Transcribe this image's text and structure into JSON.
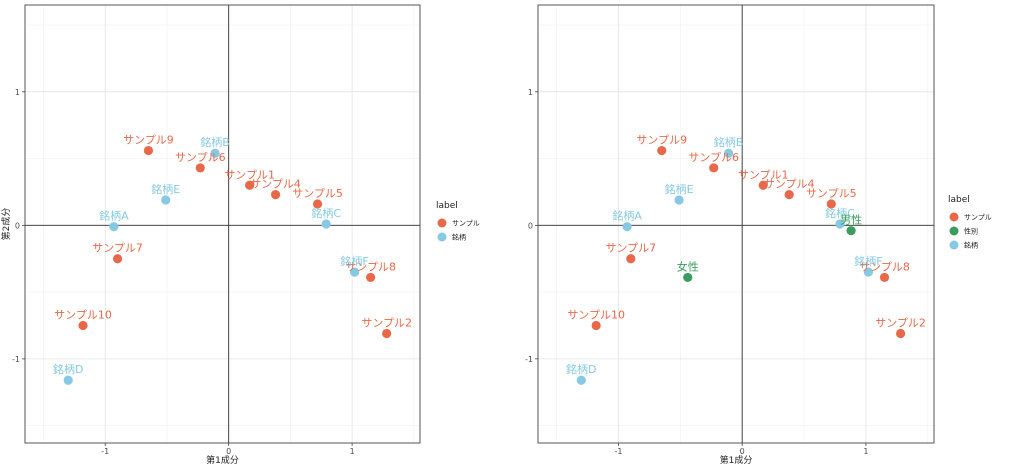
{
  "chart_data": [
    {
      "type": "scatter",
      "title": "",
      "xlabel": "第1成分",
      "ylabel": "第2成分",
      "xlim": [
        -1.65,
        1.55
      ],
      "ylim": [
        -1.63,
        1.65
      ],
      "xticks": [
        -1,
        0,
        1
      ],
      "yticks": [
        -1,
        0,
        1
      ],
      "grid": true,
      "legend_position": "right",
      "legend_title": "label",
      "categories": [
        {
          "name": "サンプル",
          "color": "#E8694A"
        },
        {
          "name": "銘柄",
          "color": "#86C9E3"
        }
      ],
      "points": [
        {
          "label": "サンプル9",
          "x": -0.65,
          "y": 0.56,
          "category": "サンプル"
        },
        {
          "label": "サンプル6",
          "x": -0.23,
          "y": 0.43,
          "category": "サンプル"
        },
        {
          "label": "サンプル1",
          "x": 0.17,
          "y": 0.3,
          "category": "サンプル"
        },
        {
          "label": "サンプル4",
          "x": 0.38,
          "y": 0.23,
          "category": "サンプル"
        },
        {
          "label": "サンプル5",
          "x": 0.72,
          "y": 0.16,
          "category": "サンプル"
        },
        {
          "label": "サンプル7",
          "x": -0.9,
          "y": -0.25,
          "category": "サンプル"
        },
        {
          "label": "サンプル8",
          "x": 1.15,
          "y": -0.39,
          "category": "サンプル"
        },
        {
          "label": "サンプル10",
          "x": -1.18,
          "y": -0.75,
          "category": "サンプル"
        },
        {
          "label": "サンプル2",
          "x": 1.28,
          "y": -0.81,
          "category": "サンプル"
        },
        {
          "label": "銘柄B",
          "x": -0.11,
          "y": 0.54,
          "category": "銘柄"
        },
        {
          "label": "銘柄E",
          "x": -0.51,
          "y": 0.19,
          "category": "銘柄"
        },
        {
          "label": "銘柄A",
          "x": -0.93,
          "y": -0.01,
          "category": "銘柄"
        },
        {
          "label": "銘柄C",
          "x": 0.79,
          "y": 0.01,
          "category": "銘柄"
        },
        {
          "label": "銘柄F",
          "x": 1.02,
          "y": -0.35,
          "category": "銘柄"
        },
        {
          "label": "銘柄D",
          "x": -1.3,
          "y": -1.16,
          "category": "銘柄"
        }
      ]
    },
    {
      "type": "scatter",
      "title": "",
      "xlabel": "第1成分",
      "ylabel": "",
      "xlim": [
        -1.65,
        1.55
      ],
      "ylim": [
        -1.63,
        1.65
      ],
      "xticks": [
        -1,
        0,
        1
      ],
      "yticks": [
        -1,
        0,
        1
      ],
      "grid": true,
      "legend_position": "right",
      "legend_title": "label",
      "categories": [
        {
          "name": "サンプル",
          "color": "#E8694A"
        },
        {
          "name": "性別",
          "color": "#3A9D5D"
        },
        {
          "name": "銘柄",
          "color": "#86C9E3"
        }
      ],
      "points": [
        {
          "label": "サンプル9",
          "x": -0.65,
          "y": 0.56,
          "category": "サンプル"
        },
        {
          "label": "サンプル6",
          "x": -0.23,
          "y": 0.43,
          "category": "サンプル"
        },
        {
          "label": "サンプル1",
          "x": 0.17,
          "y": 0.3,
          "category": "サンプル"
        },
        {
          "label": "サンプル4",
          "x": 0.38,
          "y": 0.23,
          "category": "サンプル"
        },
        {
          "label": "サンプル5",
          "x": 0.72,
          "y": 0.16,
          "category": "サンプル"
        },
        {
          "label": "サンプル7",
          "x": -0.9,
          "y": -0.25,
          "category": "サンプル"
        },
        {
          "label": "サンプル8",
          "x": 1.15,
          "y": -0.39,
          "category": "サンプル"
        },
        {
          "label": "サンプル10",
          "x": -1.18,
          "y": -0.75,
          "category": "サンプル"
        },
        {
          "label": "サンプル2",
          "x": 1.28,
          "y": -0.81,
          "category": "サンプル"
        },
        {
          "label": "銘柄B",
          "x": -0.11,
          "y": 0.54,
          "category": "銘柄"
        },
        {
          "label": "銘柄E",
          "x": -0.51,
          "y": 0.19,
          "category": "銘柄"
        },
        {
          "label": "銘柄A",
          "x": -0.93,
          "y": -0.01,
          "category": "銘柄"
        },
        {
          "label": "銘柄C",
          "x": 0.79,
          "y": 0.01,
          "category": "銘柄"
        },
        {
          "label": "銘柄F",
          "x": 1.02,
          "y": -0.35,
          "category": "銘柄"
        },
        {
          "label": "銘柄D",
          "x": -1.3,
          "y": -1.16,
          "category": "銘柄"
        },
        {
          "label": "男性",
          "x": 0.88,
          "y": -0.04,
          "category": "性別"
        },
        {
          "label": "女性",
          "x": -0.44,
          "y": -0.39,
          "category": "性別"
        }
      ]
    }
  ]
}
